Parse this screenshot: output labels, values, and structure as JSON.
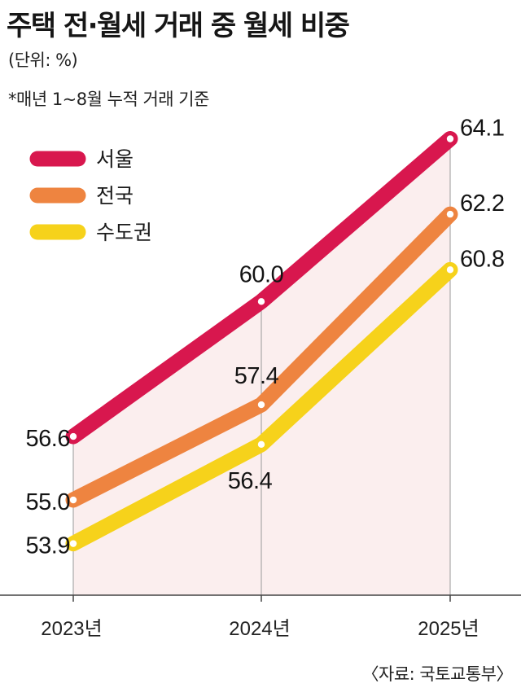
{
  "title": "주택 전·월세 거래 중 월세 비중",
  "unit": "(단위: %)",
  "note": "*매년 1~8월 누적 거래 기준",
  "source": "〈자료: 국토교통부〉",
  "colors": {
    "서울": "#d8174e",
    "전국": "#ee8440",
    "수도권": "#f6d21b",
    "shade": "#fbeeee",
    "grid": "#9a9a9a"
  },
  "chart_data": {
    "type": "line",
    "categories": [
      "2023년",
      "2024년",
      "2025년"
    ],
    "ylim": [
      52.6,
      65.3
    ],
    "legend_position": "top-left",
    "series": [
      {
        "name": "서울",
        "values": [
          56.6,
          60.0,
          64.1
        ],
        "labels": [
          "56.6",
          "60.0",
          "64.1"
        ],
        "color_key": "서울"
      },
      {
        "name": "전국",
        "values": [
          55.0,
          57.4,
          62.2
        ],
        "labels": [
          "55.0",
          "57.4",
          "62.2"
        ],
        "color_key": "전국"
      },
      {
        "name": "수도권",
        "values": [
          53.9,
          56.4,
          60.8
        ],
        "labels": [
          "53.9",
          "56.4",
          "60.8"
        ],
        "color_key": "수도권"
      }
    ]
  }
}
